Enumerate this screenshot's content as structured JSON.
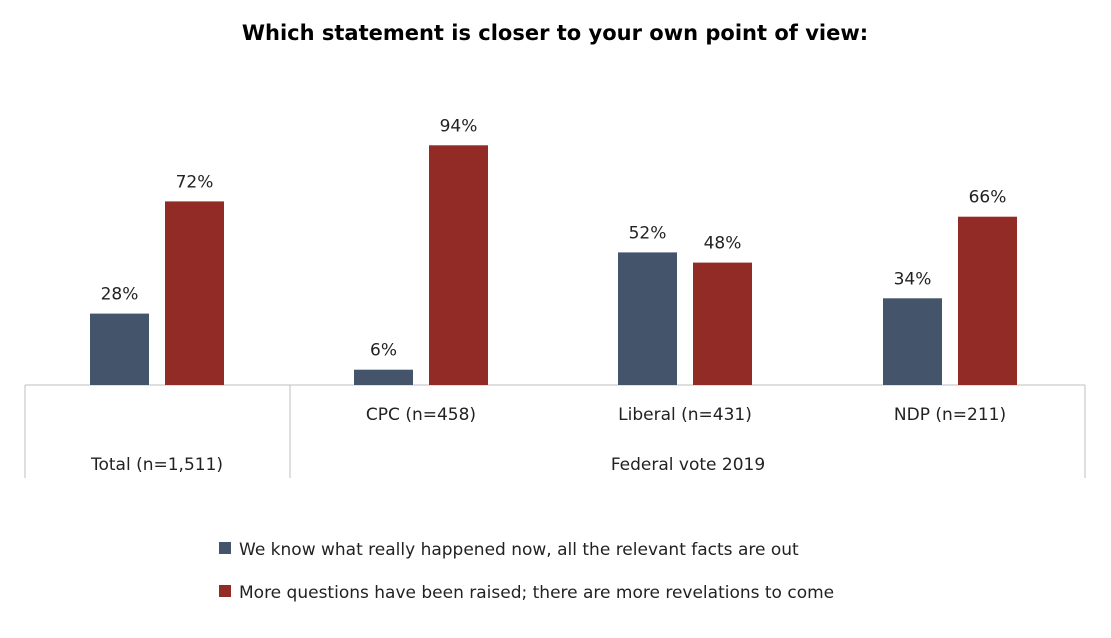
{
  "chart_data": {
    "type": "bar",
    "title": "Which statement is closer to your own point of view:",
    "categories": [
      "Total (n=1,511)",
      "CPC (n=458)",
      "Liberal (n=431)",
      "NDP (n=211)"
    ],
    "group_label": "Federal vote 2019",
    "series": [
      {
        "name": "We know what really happened now, all the relevant facts are out",
        "color": "#44546a",
        "values": [
          28,
          6,
          52,
          34
        ]
      },
      {
        "name": "More questions have been raised; there are more revelations to come",
        "color": "#922b25",
        "values": [
          72,
          94,
          48,
          66
        ]
      }
    ],
    "value_suffix": "%",
    "ylim": [
      0,
      100
    ],
    "grid": false,
    "legend_position": "bottom"
  }
}
